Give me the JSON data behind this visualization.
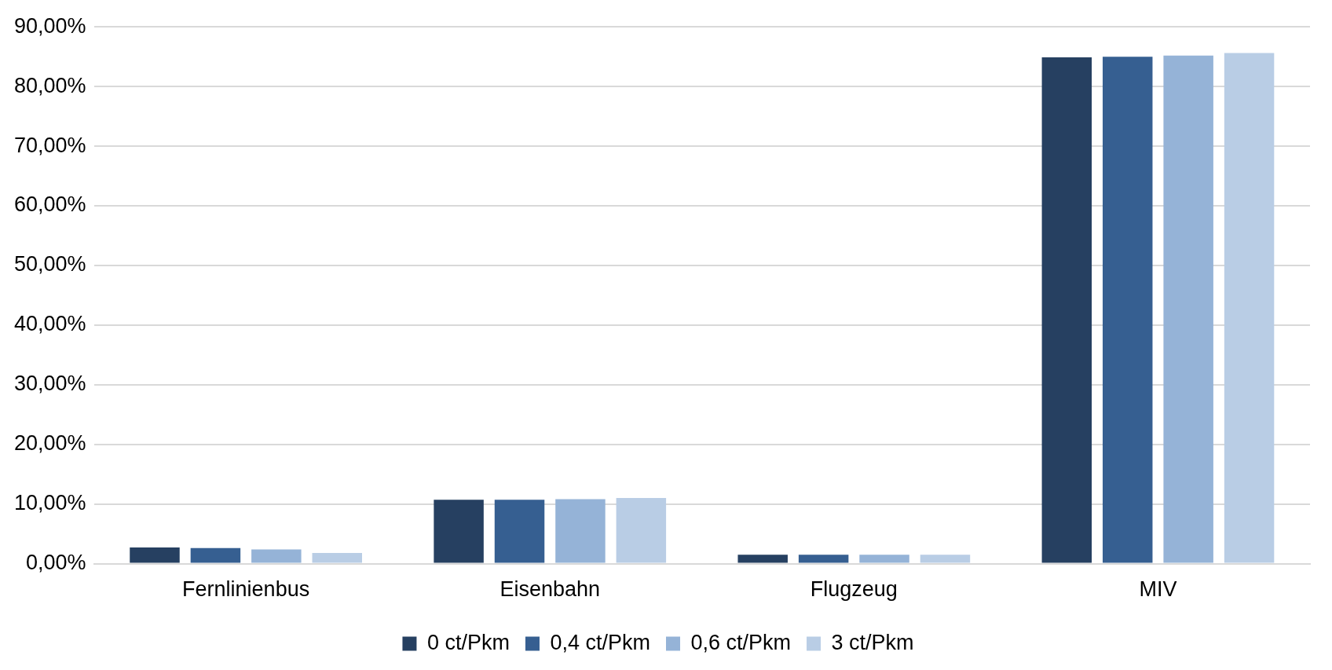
{
  "chart_data": {
    "type": "bar",
    "categories": [
      "Fernlinienbus",
      "Eisenbahn",
      "Flugzeug",
      "MIV"
    ],
    "series": [
      {
        "name": "0 ct/Pkm",
        "color": "#264061",
        "values": [
          2.7,
          10.7,
          1.5,
          84.9
        ]
      },
      {
        "name": "0,4 ct/Pkm",
        "color": "#365f91",
        "values": [
          2.6,
          10.7,
          1.5,
          85.0
        ]
      },
      {
        "name": "0,6 ct/Pkm",
        "color": "#95b3d7",
        "values": [
          2.4,
          10.8,
          1.5,
          85.2
        ]
      },
      {
        "name": "3 ct/Pkm",
        "color": "#b9cde5",
        "values": [
          1.8,
          11.0,
          1.5,
          85.6
        ]
      }
    ],
    "ylim": [
      0,
      90
    ],
    "yticks": [
      {
        "value": 0,
        "label": "0,00%"
      },
      {
        "value": 10,
        "label": "10,00%"
      },
      {
        "value": 20,
        "label": "20,00%"
      },
      {
        "value": 30,
        "label": "30,00%"
      },
      {
        "value": 40,
        "label": "40,00%"
      },
      {
        "value": 50,
        "label": "50,00%"
      },
      {
        "value": 60,
        "label": "60,00%"
      },
      {
        "value": 70,
        "label": "70,00%"
      },
      {
        "value": 80,
        "label": "80,00%"
      },
      {
        "value": 90,
        "label": "90,00%"
      }
    ],
    "grid": "y",
    "legend": "bottom"
  }
}
